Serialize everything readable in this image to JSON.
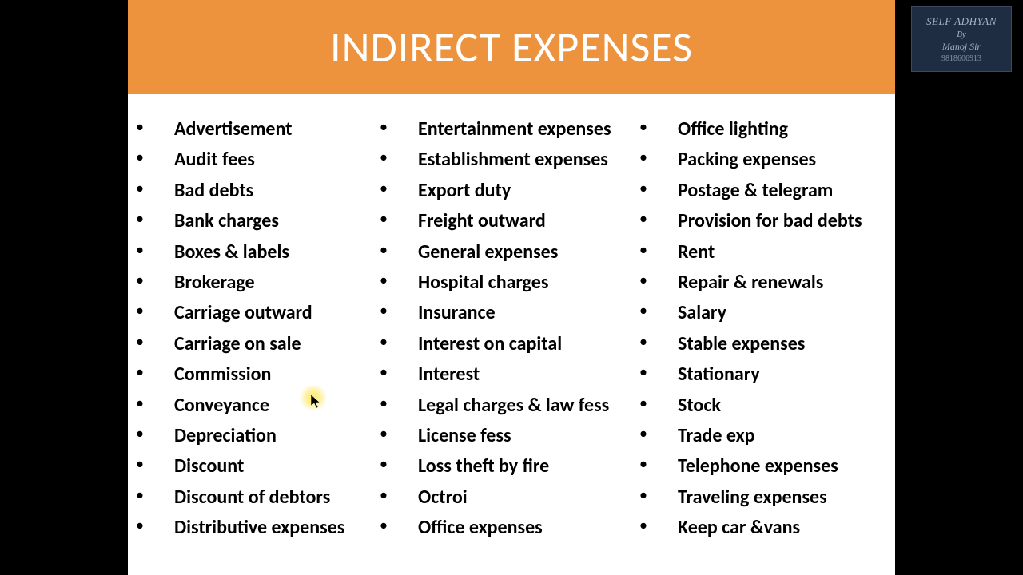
{
  "title": "INDIRECT EXPENSES",
  "header_bg": "#ed933e",
  "header_text_color": "#ffffff",
  "background_color": "#000000",
  "slide_bg": "#ffffff",
  "item_text_color": "#000000",
  "item_fontsize": 24,
  "item_fontweight": 700,
  "title_fontsize": 54,
  "columns": {
    "col1": [
      "Advertisement",
      "Audit fees",
      "Bad debts",
      "Bank charges",
      "Boxes & labels",
      "Brokerage",
      "Carriage outward",
      "Carriage on sale",
      "Commission",
      "Conveyance",
      "Depreciation",
      "Discount",
      "Discount of debtors",
      "Distributive expenses"
    ],
    "col2": [
      "Entertainment expenses",
      "Establishment expenses",
      "Export duty",
      "Freight outward",
      "General expenses",
      "Hospital charges",
      "Insurance",
      "Interest on capital",
      "Interest",
      "Legal charges & law fess",
      "License fess",
      "Loss theft by fire",
      "Octroi",
      "Office expenses"
    ],
    "col3": [
      "Office lighting",
      "Packing expenses",
      "Postage & telegram",
      "Provision for bad debts",
      "Rent",
      "Repair & renewals",
      "Salary",
      "Stable expenses",
      "Stationary",
      "Stock",
      "Trade exp",
      "Telephone expenses",
      "Traveling expenses",
      "Keep car &vans"
    ]
  },
  "watermark": {
    "line1": "SELF ADHYAN",
    "line2": "By",
    "line3": "Manoj Sir",
    "line4": "9818606913",
    "bg_color": "#1e2d42",
    "text_color": "#a8b4c4"
  },
  "cursor": {
    "highlight_color": "rgba(255,230,80,0.9)"
  }
}
